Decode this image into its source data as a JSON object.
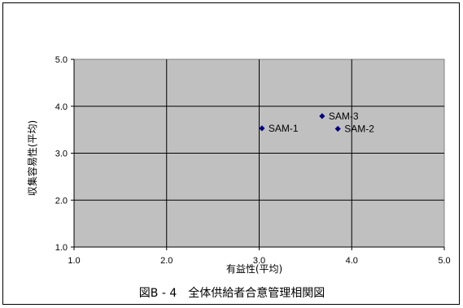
{
  "chart_data": {
    "type": "scatter",
    "title": "",
    "xlabel": "有益性(平均)",
    "ylabel": "収集容易性(平均)",
    "xlim": [
      1.0,
      5.0
    ],
    "ylim": [
      1.0,
      5.0
    ],
    "x_ticks": [
      "1.0",
      "2.0",
      "3.0",
      "4.0",
      "5.0"
    ],
    "y_ticks": [
      "1.0",
      "2.0",
      "3.0",
      "4.0",
      "5.0"
    ],
    "grid": true,
    "legend": "none",
    "series": [
      {
        "points": [
          {
            "label": "SAM-1",
            "x": 3.03,
            "y": 3.53
          },
          {
            "label": "SAM-2",
            "x": 3.85,
            "y": 3.52
          },
          {
            "label": "SAM-3",
            "x": 3.68,
            "y": 3.79
          }
        ],
        "color": "#00007f"
      }
    ],
    "plot_background": "#c0c0c0"
  },
  "caption": "図B - 4　全体供給者合意管理相関図"
}
